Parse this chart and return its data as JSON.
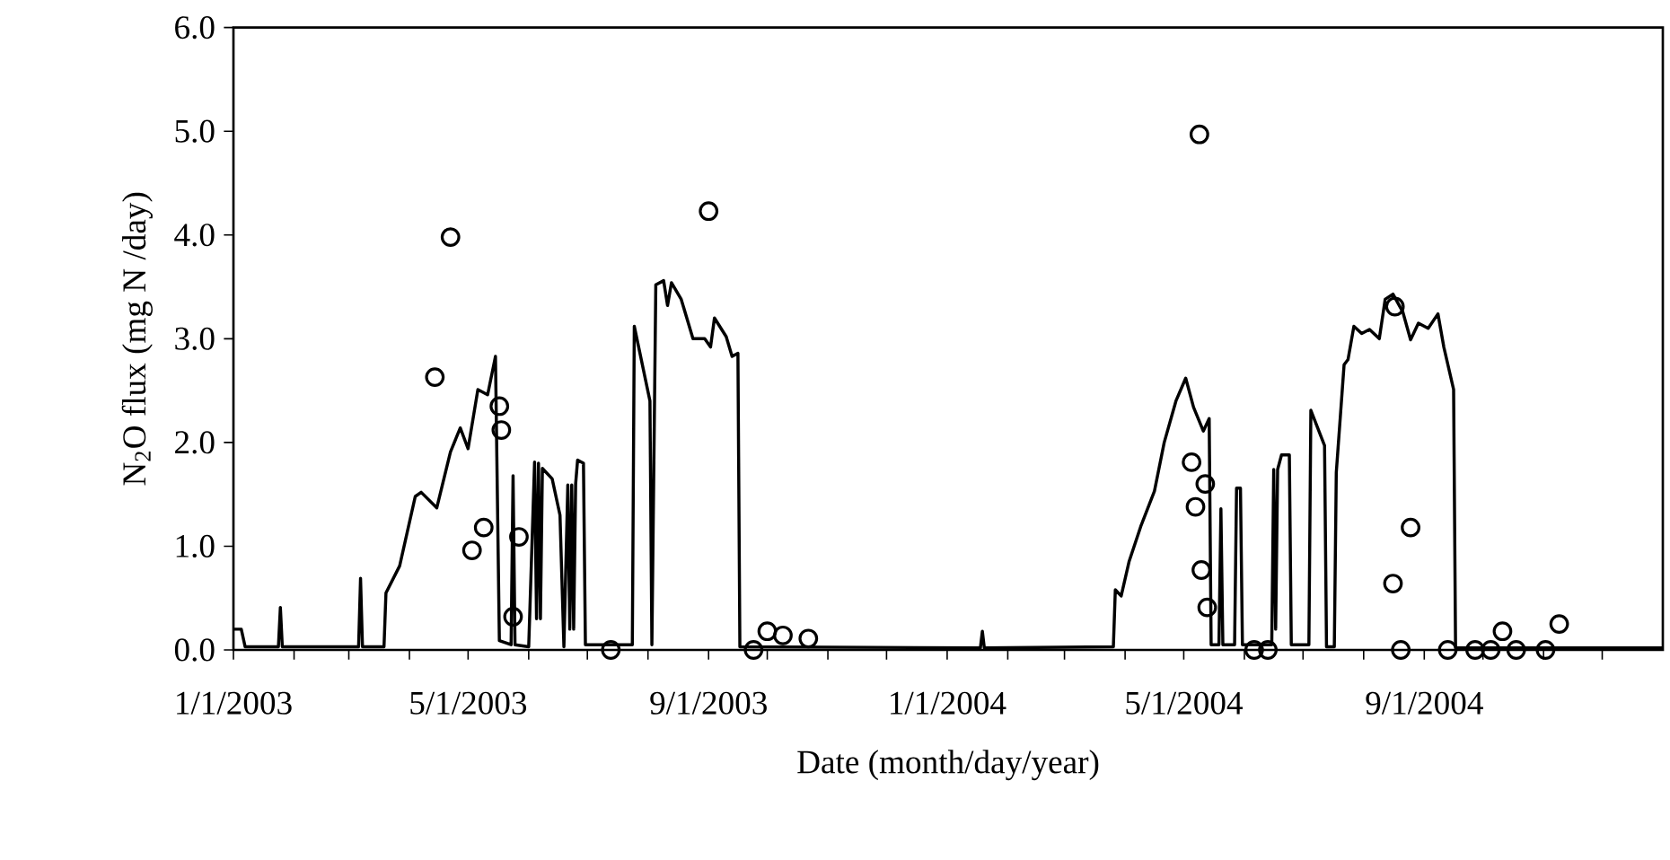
{
  "chart_data": {
    "type": "line",
    "xlabel": "Date (month/day/year)",
    "ylabel": "N$_{2}$O flux (mg N /day)",
    "xlim": [
      "2003-01-01",
      "2005-01-01"
    ],
    "ylim": [
      0,
      6
    ],
    "xticks": [
      {
        "value": "2003-01-01",
        "label": "1/1/2003"
      },
      {
        "value": "2003-02-01",
        "label": null
      },
      {
        "value": "2003-03-01",
        "label": null
      },
      {
        "value": "2003-04-01",
        "label": null
      },
      {
        "value": "2003-05-01",
        "label": "5/1/2003"
      },
      {
        "value": "2003-06-01",
        "label": null
      },
      {
        "value": "2003-07-01",
        "label": null
      },
      {
        "value": "2003-08-01",
        "label": null
      },
      {
        "value": "2003-09-01",
        "label": "9/1/2003"
      },
      {
        "value": "2003-10-01",
        "label": null
      },
      {
        "value": "2003-11-01",
        "label": null
      },
      {
        "value": "2003-12-01",
        "label": null
      },
      {
        "value": "2004-01-01",
        "label": "1/1/2004"
      },
      {
        "value": "2004-02-01",
        "label": null
      },
      {
        "value": "2004-03-01",
        "label": null
      },
      {
        "value": "2004-04-01",
        "label": null
      },
      {
        "value": "2004-05-01",
        "label": "5/1/2004"
      },
      {
        "value": "2004-06-01",
        "label": null
      },
      {
        "value": "2004-07-01",
        "label": null
      },
      {
        "value": "2004-08-01",
        "label": null
      },
      {
        "value": "2004-09-01",
        "label": "9/1/2004"
      },
      {
        "value": "2004-10-01",
        "label": null
      },
      {
        "value": "2004-11-01",
        "label": null
      },
      {
        "value": "2004-12-01",
        "label": null
      }
    ],
    "yticks": [
      {
        "value": 0,
        "label": "0.0"
      },
      {
        "value": 1,
        "label": "1.0"
      },
      {
        "value": 2,
        "label": "2.0"
      },
      {
        "value": 3,
        "label": "3.0"
      },
      {
        "value": 4,
        "label": "4.0"
      },
      {
        "value": 5,
        "label": "5.0"
      },
      {
        "value": 6,
        "label": "6.0"
      }
    ],
    "series": [
      {
        "color": "#000000",
        "marker": "none",
        "line_style": "solid",
        "x": [
          "2003-01-01",
          "2003-01-05",
          "2003-01-07",
          "2003-01-24",
          "2003-01-25",
          "2003-01-26",
          "2003-03-06",
          "2003-03-07",
          "2003-03-08",
          "2003-03-19",
          "2003-03-20",
          "2003-03-27",
          "2003-04-04",
          "2003-04-07",
          "2003-04-15",
          "2003-04-22",
          "2003-04-27",
          "2003-05-01",
          "2003-05-06",
          "2003-05-11",
          "2003-05-15",
          "2003-05-17",
          "2003-05-23",
          "2003-05-24",
          "2003-05-25",
          "2003-06-01",
          "2003-06-04",
          "2003-06-05",
          "2003-06-06",
          "2003-06-07",
          "2003-06-08",
          "2003-06-13",
          "2003-06-17",
          "2003-06-19",
          "2003-06-21",
          "2003-06-22",
          "2003-06-23",
          "2003-06-24",
          "2003-06-25",
          "2003-06-26",
          "2003-06-29",
          "2003-06-30",
          "2003-07-24",
          "2003-07-25",
          "2003-08-02",
          "2003-08-03",
          "2003-08-05",
          "2003-08-09",
          "2003-08-11",
          "2003-08-13",
          "2003-08-18",
          "2003-08-24",
          "2003-08-30",
          "2003-09-02",
          "2003-09-04",
          "2003-09-10",
          "2003-09-13",
          "2003-09-16",
          "2003-09-17",
          "2004-01-18",
          "2004-01-19",
          "2004-01-20",
          "2004-03-26",
          "2004-03-27",
          "2004-03-30",
          "2004-04-03",
          "2004-04-09",
          "2004-04-16",
          "2004-04-21",
          "2004-04-27",
          "2004-05-02",
          "2004-05-06",
          "2004-05-11",
          "2004-05-14",
          "2004-05-15",
          "2004-05-19",
          "2004-05-20",
          "2004-05-21",
          "2004-05-27",
          "2004-05-28",
          "2004-05-30",
          "2004-05-31",
          "2004-06-15",
          "2004-06-16",
          "2004-06-17",
          "2004-06-18",
          "2004-06-20",
          "2004-06-24",
          "2004-06-25",
          "2004-07-04",
          "2004-07-05",
          "2004-07-12",
          "2004-07-13",
          "2004-07-17",
          "2004-07-18",
          "2004-07-22",
          "2004-07-24",
          "2004-07-27",
          "2004-07-31",
          "2004-08-04",
          "2004-08-09",
          "2004-08-12",
          "2004-08-16",
          "2004-08-21",
          "2004-08-25",
          "2004-08-29",
          "2004-09-03",
          "2004-09-08",
          "2004-09-11",
          "2004-09-16",
          "2004-09-17",
          "2005-01-01"
        ],
        "values": [
          0.2,
          0.2,
          0.03,
          0.03,
          0.41,
          0.03,
          0.03,
          0.69,
          0.03,
          0.03,
          0.55,
          0.81,
          1.48,
          1.52,
          1.37,
          1.91,
          2.14,
          1.94,
          2.51,
          2.46,
          2.83,
          0.09,
          0.05,
          1.68,
          0.05,
          0.03,
          1.81,
          0.3,
          1.8,
          0.3,
          1.75,
          1.65,
          1.3,
          0.03,
          1.59,
          0.2,
          1.59,
          0.2,
          1.6,
          1.83,
          1.8,
          0.05,
          0.05,
          3.12,
          2.4,
          0.05,
          3.52,
          3.56,
          3.32,
          3.54,
          3.38,
          3.0,
          3.0,
          2.92,
          3.2,
          3.02,
          2.83,
          2.86,
          0.03,
          0.02,
          0.18,
          0.02,
          0.03,
          0.58,
          0.52,
          0.85,
          1.19,
          1.53,
          2.0,
          2.4,
          2.62,
          2.34,
          2.11,
          2.23,
          0.05,
          0.05,
          1.36,
          0.05,
          0.05,
          1.56,
          1.56,
          0.05,
          0.05,
          1.74,
          0.2,
          1.74,
          1.88,
          1.88,
          0.05,
          0.05,
          2.31,
          1.97,
          0.03,
          0.03,
          1.71,
          2.75,
          2.8,
          3.12,
          3.05,
          3.09,
          3.0,
          3.38,
          3.43,
          3.26,
          2.99,
          3.15,
          3.1,
          3.24,
          2.92,
          2.51,
          0.02,
          0.02
        ]
      },
      {
        "type": "scatter",
        "color": "#000000",
        "marker": "circle",
        "x": [
          "2003-04-14",
          "2003-04-22",
          "2003-05-03",
          "2003-05-09",
          "2003-05-17",
          "2003-05-18",
          "2003-05-24",
          "2003-05-27",
          "2003-07-13",
          "2003-09-01",
          "2003-09-24",
          "2003-10-01",
          "2003-10-09",
          "2003-10-22",
          "2004-05-05",
          "2004-05-07",
          "2004-05-09",
          "2004-05-10",
          "2004-05-12",
          "2004-05-13",
          "2004-06-06",
          "2004-06-13",
          "2004-08-16",
          "2004-08-17",
          "2004-08-20",
          "2004-08-25",
          "2004-09-13",
          "2004-09-27",
          "2004-10-05",
          "2004-10-11",
          "2004-10-18",
          "2004-11-02",
          "2004-11-09"
        ],
        "values": [
          2.63,
          3.98,
          0.96,
          1.18,
          2.35,
          2.12,
          0.32,
          1.09,
          0.0,
          4.23,
          0.0,
          0.18,
          0.14,
          0.11,
          1.81,
          1.38,
          4.97,
          0.77,
          1.6,
          0.41,
          0.0,
          0.0,
          0.64,
          3.31,
          0.0,
          1.18,
          0.0,
          0.0,
          0.0,
          0.18,
          0.0,
          0.0,
          0.25
        ]
      }
    ]
  }
}
